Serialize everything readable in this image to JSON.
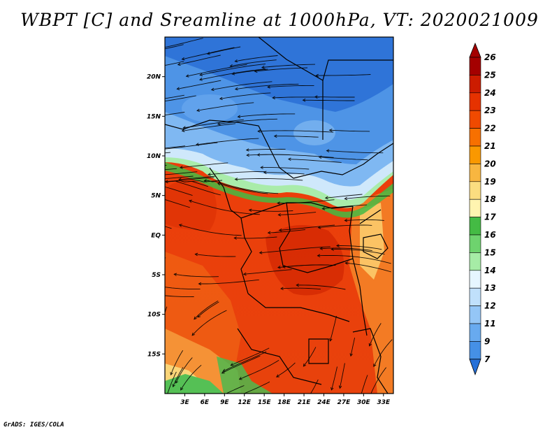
{
  "title": "WBPT [C] and Sreamline at 1000hPa, VT: 2020021009",
  "footer": "GrADS: IGES/COLA",
  "map": {
    "lon_range": [
      0,
      34.5
    ],
    "lat_range": [
      -20,
      25
    ],
    "lon_ticks": [
      "3E",
      "6E",
      "9E",
      "12E",
      "15E",
      "18E",
      "21E",
      "24E",
      "27E",
      "30E",
      "33E"
    ],
    "lon_tick_values": [
      3,
      6,
      9,
      12,
      15,
      18,
      21,
      24,
      27,
      30,
      33
    ],
    "lat_ticks": [
      "20N",
      "15N",
      "10N",
      "5N",
      "EQ",
      "5S",
      "10S",
      "15S"
    ],
    "lat_tick_values": [
      20,
      15,
      10,
      5,
      0,
      -5,
      -10,
      -15
    ],
    "field": "WBPT",
    "units": "C",
    "level": "1000hPa",
    "valid_time": "2020021009"
  },
  "colorbar": {
    "labels": [
      "26",
      "25",
      "24",
      "23",
      "22",
      "21",
      "20",
      "19",
      "18",
      "17",
      "16",
      "15",
      "14",
      "13",
      "12",
      "11",
      "9",
      "7"
    ],
    "colors": [
      "#a40000",
      "#cc1c00",
      "#e63200",
      "#f04a00",
      "#f77000",
      "#fa9800",
      "#f8b640",
      "#fbdd80",
      "#fff4b0",
      "#44bb44",
      "#6ed36e",
      "#a6eca6",
      "#e6f6ff",
      "#c0e0fb",
      "#94c6f6",
      "#68aaef",
      "#4590e6",
      "#2570d8"
    ]
  }
}
